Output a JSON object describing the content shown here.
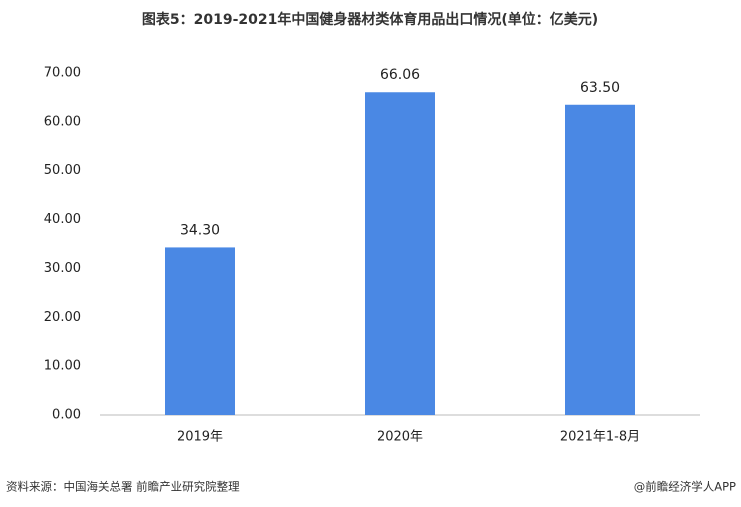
{
  "chart_data": {
    "type": "bar",
    "title": "图表5：2019-2021年中国健身器材类体育用品出口情况(单位：亿美元)",
    "categories": [
      "2019年",
      "2020年",
      "2021年1-8月"
    ],
    "values": [
      34.3,
      66.06,
      63.5
    ],
    "value_labels": [
      "34.30",
      "66.06",
      "63.50"
    ],
    "color": "#4a88e4",
    "ylim": [
      0,
      70
    ],
    "yticks": [
      {
        "value": 0,
        "label": "0.00"
      },
      {
        "value": 10,
        "label": "10.00"
      },
      {
        "value": 20,
        "label": "20.00"
      },
      {
        "value": 30,
        "label": "30.00"
      },
      {
        "value": 40,
        "label": "40.00"
      },
      {
        "value": 50,
        "label": "50.00"
      },
      {
        "value": 60,
        "label": "60.00"
      },
      {
        "value": 70,
        "label": "70.00"
      }
    ],
    "grid": false,
    "source": "资料来源：中国海关总署 前瞻产业研究院整理",
    "brand": "@前瞻经济学人APP"
  }
}
